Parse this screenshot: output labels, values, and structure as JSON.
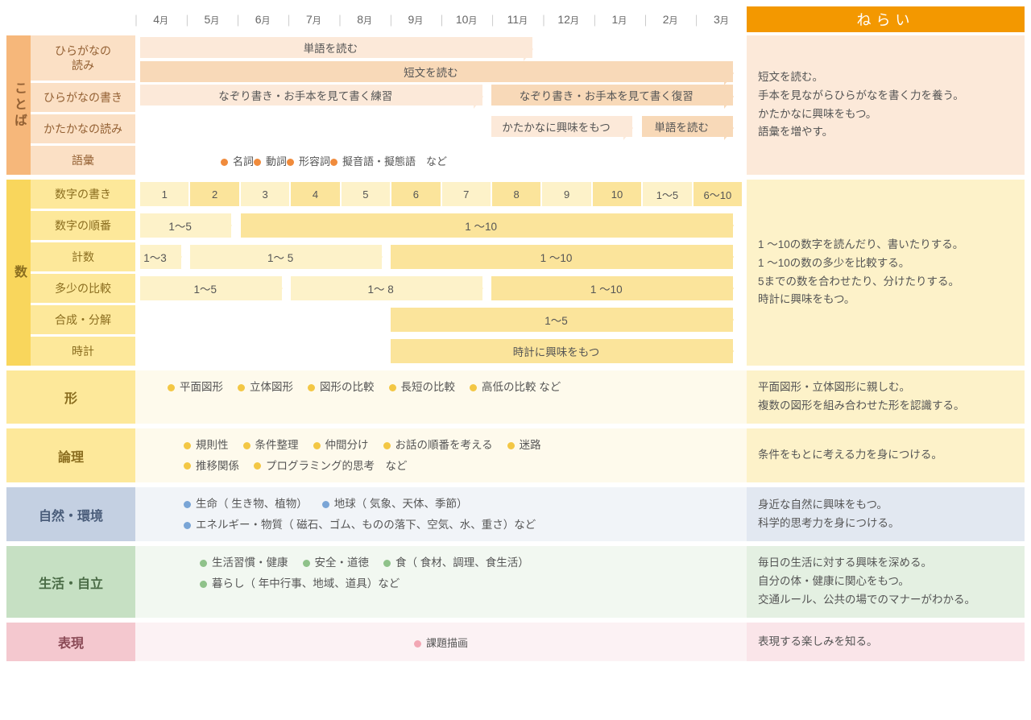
{
  "months": [
    "4",
    "5",
    "6",
    "7",
    "8",
    "9",
    "10",
    "11",
    "12",
    "1",
    "2",
    "3"
  ],
  "month_suffix": "月",
  "nerai_header": "ねらい",
  "colors": {
    "header_orange": "#f39800",
    "peach_cat": "#f6b77a",
    "peach_sub": "#fbe0c5",
    "peach_nerai": "#fce9d9",
    "yellow_cat": "#f9d65c",
    "yellow_sub": "#fde89a",
    "yellow_nerai": "#fdf2c9",
    "yellow_body": "#fefaec",
    "blue_sub": "#c4d0e2",
    "blue_nerai": "#e2e8f1",
    "blue_body": "#f1f4f8",
    "green_sub": "#c6e0c3",
    "green_nerai": "#e4f0e2",
    "green_body": "#f2f8f1",
    "pink_sub": "#f4c8cf",
    "pink_nerai": "#fae5e9",
    "pink_body": "#fcf2f4",
    "bar_ltpeach": "#fce9d9",
    "bar_peach": "#f8d9b8",
    "bar_ltyellow": "#fdf2c9",
    "bar_yellow": "#fbe49b",
    "dot_orange": "#f08b3c",
    "dot_yellow": "#f3c744",
    "dot_blue": "#7aa5d6",
    "dot_green": "#8fc28a",
    "dot_pink": "#f2a7b4"
  },
  "kotoba": {
    "cat": "ことば",
    "subs": [
      "ひらがなの\n読み",
      "ひらがなの書き",
      "かたかなの読み",
      "語彙"
    ],
    "bars": {
      "hiragana_read_top": {
        "label": "単語を読む",
        "start": 0,
        "span": 8,
        "style": "ltpeach"
      },
      "hiragana_read_bot": {
        "label": "短文を読む",
        "start": 0,
        "span": 12,
        "style": "peach"
      },
      "hiragana_write_1": {
        "label": "なぞり書き・お手本を見て書く練習",
        "start": 0,
        "span": 7,
        "style": "ltpeach"
      },
      "hiragana_write_2": {
        "label": "なぞり書き・お手本を見て書く復習",
        "start": 7,
        "span": 5,
        "style": "peach"
      },
      "katakana_1": {
        "label": "かたかなに興味をもつ",
        "start": 7,
        "span": 3,
        "style": "ltpeach"
      },
      "katakana_2": {
        "label": "単語を読む",
        "start": 10,
        "span": 2,
        "style": "peach"
      }
    },
    "goi_items": [
      "名詞",
      "動詞",
      "形容詞",
      "擬音語・擬態語　など"
    ],
    "goi_dot": "#f08b3c",
    "nerai": [
      "短文を読む。",
      "手本を見ながらひらがなを書く力を養う。",
      "かたかなに興味をもつ。",
      "語彙を増やす。"
    ]
  },
  "kazu": {
    "cat": "数",
    "subs": [
      "数字の書き",
      "数字の順番",
      "計数",
      "多少の比較",
      "合成・分解",
      "時計"
    ],
    "suuji_kaki": [
      "1",
      "2",
      "3",
      "4",
      "5",
      "6",
      "7",
      "8",
      "9",
      "10",
      "1～5",
      "6～10"
    ],
    "junban": [
      {
        "label": "1～5",
        "start": 0,
        "span": 2,
        "style": "ltyellow"
      },
      {
        "label": "1 ～10",
        "start": 2,
        "span": 10,
        "style": "yellow"
      }
    ],
    "keisuu": [
      {
        "label": "1～3",
        "start": 0,
        "span": 1,
        "style": "ltyellow"
      },
      {
        "label": "1～ 5",
        "start": 1,
        "span": 4,
        "style": "ltyellow"
      },
      {
        "label": "1 ～10",
        "start": 5,
        "span": 7,
        "style": "yellow"
      }
    ],
    "tashou": [
      {
        "label": "1～5",
        "start": 0,
        "span": 3,
        "style": "ltyellow"
      },
      {
        "label": "1～ 8",
        "start": 3,
        "span": 4,
        "style": "ltyellow"
      },
      {
        "label": "1 ～10",
        "start": 7,
        "span": 5,
        "style": "yellow"
      }
    ],
    "gousei": [
      {
        "label": "1～5",
        "start": 5,
        "span": 7,
        "style": "yellow"
      }
    ],
    "tokei": [
      {
        "label": "時計に興味をもつ",
        "start": 5,
        "span": 7,
        "style": "yellow"
      }
    ],
    "nerai": [
      "1 ～10の数字を読んだり、書いたりする。",
      "1 ～10の数の多少を比較する。",
      "5までの数を合わせたり、分けたりする。",
      "時計に興味をもつ。"
    ]
  },
  "katachi": {
    "label": "形",
    "items": [
      "平面図形",
      "立体図形",
      "図形の比較",
      "長短の比較",
      "高低の比較 など"
    ],
    "dot": "#f3c744",
    "nerai": [
      "平面図形・立体図形に親しむ。",
      "複数の図形を組み合わせた形を認識する。"
    ]
  },
  "ronri": {
    "label": "論理",
    "items": [
      "規則性",
      "条件整理",
      "仲間分け",
      "お話の順番を考える",
      "迷路",
      "推移関係",
      "プログラミング的思考　など"
    ],
    "dot": "#f3c744",
    "nerai": [
      "条件をもとに考える力を身につける。"
    ]
  },
  "shizen": {
    "label": "自然・環境",
    "items": [
      "生命（ 生き物、植物）",
      "地球（ 気象、天体、季節）",
      "エネルギー・物質（ 磁石、ゴム、ものの落下、空気、水、重さ）など"
    ],
    "dot": "#7aa5d6",
    "nerai": [
      "身近な自然に興味をもつ。",
      "科学的思考力を身につける。"
    ]
  },
  "seikatsu": {
    "label": "生活・自立",
    "items": [
      "生活習慣・健康",
      "安全・道徳",
      "食（ 食材、調理、食生活）",
      "暮らし（ 年中行事、地域、道具）など"
    ],
    "dot": "#8fc28a",
    "nerai": [
      "毎日の生活に対する興味を深める。",
      "自分の体・健康に関心をもつ。",
      "交通ルール、公共の場でのマナーがわかる。"
    ]
  },
  "hyougen": {
    "label": "表現",
    "items": [
      "課題描画"
    ],
    "dot": "#f2a7b4",
    "nerai": [
      "表現する楽しみを知る。"
    ]
  }
}
